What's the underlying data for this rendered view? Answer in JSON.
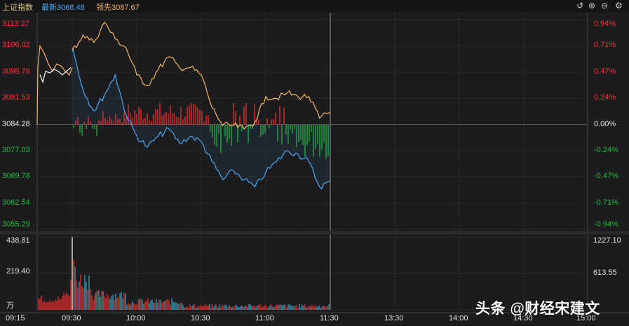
{
  "header": {
    "index_name": "上证指数",
    "latest_label": "最新",
    "latest_value": "3068.48",
    "lead_label": "领先",
    "lead_value": "3087.67"
  },
  "toolbar": {
    "back_icon": "undo-icon",
    "zoom_in_icon": "zoom-in-icon",
    "zoom_out_icon": "zoom-out-icon",
    "settings_icon": "gear-icon"
  },
  "price_axis": [
    "3113.27",
    "3106.02",
    "3098.78",
    "3091.53",
    "3084.28",
    "3077.03",
    "3069.78",
    "3062.54",
    "3055.29"
  ],
  "pct_axis": [
    "0.94%",
    "0.71%",
    "0.47%",
    "0.24%",
    "0.00%",
    "-0.24%",
    "-0.47%",
    "-0.71%",
    "-0.94%"
  ],
  "volume_axis_left": [
    "438.81",
    "219.40",
    "万"
  ],
  "volume_axis_right": [
    "1227.10",
    "613.55"
  ],
  "time_axis": [
    "09:15",
    "09:30",
    "10:00",
    "10:30",
    "11:00",
    "11:30",
    "13:30",
    "14:00",
    "14:30",
    "15:00"
  ],
  "watermark": "头条 @财经宋建文",
  "colors": {
    "up": "#ff3030",
    "down": "#1fbf3a",
    "latest_line": "#4aa8f5",
    "lead_line": "#f5b560",
    "auction_line": "#ffffff"
  },
  "chart_data": {
    "type": "line",
    "x_unit": "time",
    "ylim": [
      3055.29,
      3113.27
    ],
    "pct_range": [
      -0.94,
      0.94
    ],
    "prev_close": 3084.28,
    "series": [
      {
        "name": "最新",
        "x": [
          "09:30",
          "09:35",
          "09:40",
          "09:45",
          "09:50",
          "09:55",
          "10:00",
          "10:05",
          "10:10",
          "10:15",
          "10:20",
          "10:25",
          "10:30",
          "10:35",
          "10:40",
          "10:45",
          "10:50",
          "10:55",
          "11:00",
          "11:05",
          "11:10",
          "11:15",
          "11:20",
          "11:25",
          "11:30"
        ],
        "values": [
          3105.6,
          3094,
          3088,
          3092.5,
          3098,
          3087,
          3081,
          3078,
          3081,
          3083,
          3079,
          3081,
          3079.5,
          3074,
          3069,
          3071.5,
          3069,
          3067,
          3071,
          3074,
          3077,
          3076,
          3074,
          3067,
          3068.48
        ]
      },
      {
        "name": "领先",
        "x": [
          "09:30",
          "09:35",
          "09:40",
          "09:45",
          "09:50",
          "09:55",
          "10:00",
          "10:05",
          "10:10",
          "10:15",
          "10:20",
          "10:25",
          "10:30",
          "10:35",
          "10:40",
          "10:45",
          "10:50",
          "10:55",
          "11:00",
          "11:05",
          "11:10",
          "11:15",
          "11:20",
          "11:25",
          "11:30"
        ],
        "values": [
          3104.5,
          3109,
          3107,
          3112.5,
          3108,
          3105.5,
          3098,
          3095,
          3099.5,
          3103,
          3100,
          3100,
          3098,
          3089,
          3084,
          3084,
          3083,
          3085,
          3092,
          3091.5,
          3093,
          3092,
          3092,
          3086,
          3087.67
        ]
      }
    ],
    "volume": {
      "unit": "万",
      "ylim": [
        0,
        438.81
      ]
    }
  }
}
